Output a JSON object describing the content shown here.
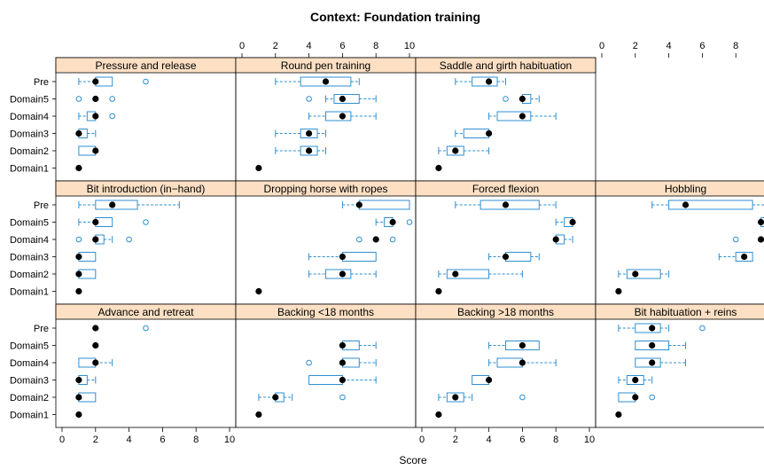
{
  "chart_data": {
    "type": "boxplot",
    "title": "Context: Foundation training",
    "xlabel": "Score",
    "xlim": [
      0,
      10
    ],
    "x_ticks": [
      0,
      2,
      4,
      6,
      8,
      10
    ],
    "y_categories": [
      "Pre",
      "Domain5",
      "Domain4",
      "Domain3",
      "Domain2",
      "Domain1"
    ],
    "colors": {
      "box": "#2f8fd0",
      "median": "#000000",
      "strip": "#fde0c4"
    },
    "panels": [
      {
        "name": "Pressure and release",
        "groups": [
          {
            "cat": "Pre",
            "whislo": 1,
            "q1": 2,
            "med": 2,
            "q3": 3,
            "whishi": 3,
            "outliers": [
              5
            ]
          },
          {
            "cat": "Domain5",
            "whislo": 2,
            "q1": 2,
            "med": 2,
            "q3": 2,
            "whishi": 2,
            "outliers": [
              1,
              3
            ]
          },
          {
            "cat": "Domain4",
            "whislo": 1,
            "q1": 1.5,
            "med": 2,
            "q3": 2,
            "whishi": 2,
            "outliers": [
              3
            ]
          },
          {
            "cat": "Domain3",
            "whislo": 1,
            "q1": 1,
            "med": 1,
            "q3": 1.5,
            "whishi": 2,
            "outliers": []
          },
          {
            "cat": "Domain2",
            "whislo": 1,
            "q1": 1,
            "med": 2,
            "q3": 2,
            "whishi": 2,
            "outliers": []
          },
          {
            "cat": "Domain1",
            "whislo": 1,
            "q1": 1,
            "med": 1,
            "q3": 1,
            "whishi": 1,
            "outliers": []
          }
        ]
      },
      {
        "name": "Round pen training",
        "groups": [
          {
            "cat": "Pre",
            "whislo": 2,
            "q1": 3.5,
            "med": 5,
            "q3": 6.5,
            "whishi": 7,
            "outliers": []
          },
          {
            "cat": "Domain5",
            "whislo": 5,
            "q1": 5.5,
            "med": 6,
            "q3": 7,
            "whishi": 8,
            "outliers": [
              4
            ]
          },
          {
            "cat": "Domain4",
            "whislo": 4,
            "q1": 5,
            "med": 6,
            "q3": 6.5,
            "whishi": 8,
            "outliers": []
          },
          {
            "cat": "Domain3",
            "whislo": 2,
            "q1": 3.5,
            "med": 4,
            "q3": 4.5,
            "whishi": 5,
            "outliers": []
          },
          {
            "cat": "Domain2",
            "whislo": 2,
            "q1": 3.5,
            "med": 4,
            "q3": 4.5,
            "whishi": 5,
            "outliers": []
          },
          {
            "cat": "Domain1",
            "whislo": 1,
            "q1": 1,
            "med": 1,
            "q3": 1,
            "whishi": 1,
            "outliers": []
          }
        ]
      },
      {
        "name": "Saddle and girth habituation",
        "groups": [
          {
            "cat": "Pre",
            "whislo": 2,
            "q1": 3,
            "med": 4,
            "q3": 4.5,
            "whishi": 5,
            "outliers": []
          },
          {
            "cat": "Domain5",
            "whislo": 6,
            "q1": 6,
            "med": 6,
            "q3": 6.5,
            "whishi": 7,
            "outliers": [
              5
            ]
          },
          {
            "cat": "Domain4",
            "whislo": 4,
            "q1": 4.5,
            "med": 6,
            "q3": 6.5,
            "whishi": 8,
            "outliers": []
          },
          {
            "cat": "Domain3",
            "whislo": 2,
            "q1": 2.5,
            "med": 4,
            "q3": 4,
            "whishi": 4,
            "outliers": []
          },
          {
            "cat": "Domain2",
            "whislo": 1,
            "q1": 1.5,
            "med": 2,
            "q3": 2.5,
            "whishi": 4,
            "outliers": []
          },
          {
            "cat": "Domain1",
            "whislo": 1,
            "q1": 1,
            "med": 1,
            "q3": 1,
            "whishi": 1,
            "outliers": []
          }
        ]
      },
      {
        "name": "",
        "groups": []
      },
      {
        "name": "Bit introduction (in−hand)",
        "groups": [
          {
            "cat": "Pre",
            "whislo": 1,
            "q1": 2,
            "med": 3,
            "q3": 4.5,
            "whishi": 7,
            "outliers": []
          },
          {
            "cat": "Domain5",
            "whislo": 1,
            "q1": 2,
            "med": 2,
            "q3": 3,
            "whishi": 3,
            "outliers": [
              5
            ]
          },
          {
            "cat": "Domain4",
            "whislo": 2,
            "q1": 2,
            "med": 2,
            "q3": 2.5,
            "whishi": 3,
            "outliers": [
              1,
              4
            ]
          },
          {
            "cat": "Domain3",
            "whislo": 1,
            "q1": 1,
            "med": 1,
            "q3": 2,
            "whishi": 2,
            "outliers": []
          },
          {
            "cat": "Domain2",
            "whislo": 1,
            "q1": 1,
            "med": 1,
            "q3": 2,
            "whishi": 2,
            "outliers": []
          },
          {
            "cat": "Domain1",
            "whislo": 1,
            "q1": 1,
            "med": 1,
            "q3": 1,
            "whishi": 1,
            "outliers": []
          }
        ]
      },
      {
        "name": "Dropping horse with ropes",
        "groups": [
          {
            "cat": "Pre",
            "whislo": 6,
            "q1": 7,
            "med": 7,
            "q3": 10,
            "whishi": 10,
            "outliers": []
          },
          {
            "cat": "Domain5",
            "whislo": 8,
            "q1": 8.5,
            "med": 9,
            "q3": 9,
            "whishi": 9,
            "outliers": [
              10
            ]
          },
          {
            "cat": "Domain4",
            "whislo": 8,
            "q1": 8,
            "med": 8,
            "q3": 8,
            "whishi": 8,
            "outliers": [
              7,
              9
            ]
          },
          {
            "cat": "Domain3",
            "whislo": 4,
            "q1": 6,
            "med": 6,
            "q3": 8,
            "whishi": 8,
            "outliers": []
          },
          {
            "cat": "Domain2",
            "whislo": 4,
            "q1": 5,
            "med": 6,
            "q3": 6.5,
            "whishi": 8,
            "outliers": []
          },
          {
            "cat": "Domain1",
            "whislo": 1,
            "q1": 1,
            "med": 1,
            "q3": 1,
            "whishi": 1,
            "outliers": []
          }
        ]
      },
      {
        "name": "Forced flexion",
        "groups": [
          {
            "cat": "Pre",
            "whislo": 2,
            "q1": 3.5,
            "med": 5,
            "q3": 7,
            "whishi": 8,
            "outliers": []
          },
          {
            "cat": "Domain5",
            "whislo": 8,
            "q1": 8.5,
            "med": 9,
            "q3": 9,
            "whishi": 9,
            "outliers": []
          },
          {
            "cat": "Domain4",
            "whislo": 8,
            "q1": 8,
            "med": 8,
            "q3": 8.5,
            "whishi": 9,
            "outliers": []
          },
          {
            "cat": "Domain3",
            "whislo": 4,
            "q1": 5,
            "med": 5,
            "q3": 6.5,
            "whishi": 7,
            "outliers": []
          },
          {
            "cat": "Domain2",
            "whislo": 1,
            "q1": 1.5,
            "med": 2,
            "q3": 4,
            "whishi": 6,
            "outliers": []
          },
          {
            "cat": "Domain1",
            "whislo": 1,
            "q1": 1,
            "med": 1,
            "q3": 1,
            "whishi": 1,
            "outliers": []
          }
        ]
      },
      {
        "name": "Hobbling",
        "groups": [
          {
            "cat": "Pre",
            "whislo": 3,
            "q1": 4,
            "med": 5,
            "q3": 9,
            "whishi": 10,
            "outliers": []
          },
          {
            "cat": "Domain5",
            "whislo": 9.5,
            "q1": 9.5,
            "med": 9.5,
            "q3": 9.8,
            "whishi": 10,
            "outliers": []
          },
          {
            "cat": "Domain4",
            "whislo": 9.5,
            "q1": 9.5,
            "med": 9.5,
            "q3": 9.5,
            "whishi": 9.5,
            "outliers": [
              8
            ]
          },
          {
            "cat": "Domain3",
            "whislo": 7,
            "q1": 8,
            "med": 8.5,
            "q3": 9,
            "whishi": 9,
            "outliers": []
          },
          {
            "cat": "Domain2",
            "whislo": 1,
            "q1": 1.5,
            "med": 2,
            "q3": 3.5,
            "whishi": 4,
            "outliers": []
          },
          {
            "cat": "Domain1",
            "whislo": 1,
            "q1": 1,
            "med": 1,
            "q3": 1,
            "whishi": 1,
            "outliers": []
          }
        ]
      },
      {
        "name": "Advance and retreat",
        "groups": [
          {
            "cat": "Pre",
            "whislo": 2,
            "q1": 2,
            "med": 2,
            "q3": 2,
            "whishi": 2,
            "outliers": [
              5
            ]
          },
          {
            "cat": "Domain5",
            "whislo": 2,
            "q1": 2,
            "med": 2,
            "q3": 2,
            "whishi": 2,
            "outliers": []
          },
          {
            "cat": "Domain4",
            "whislo": 1,
            "q1": 1,
            "med": 2,
            "q3": 2,
            "whishi": 3,
            "outliers": []
          },
          {
            "cat": "Domain3",
            "whislo": 1,
            "q1": 1,
            "med": 1,
            "q3": 1.5,
            "whishi": 2,
            "outliers": []
          },
          {
            "cat": "Domain2",
            "whislo": 1,
            "q1": 1,
            "med": 1,
            "q3": 2,
            "whishi": 2,
            "outliers": []
          },
          {
            "cat": "Domain1",
            "whislo": 1,
            "q1": 1,
            "med": 1,
            "q3": 1,
            "whishi": 1,
            "outliers": []
          }
        ]
      },
      {
        "name": "Backing <18 months",
        "groups": [
          {
            "cat": "Pre",
            "whislo": null,
            "q1": null,
            "med": null,
            "q3": null,
            "whishi": null,
            "outliers": []
          },
          {
            "cat": "Domain5",
            "whislo": 6,
            "q1": 6,
            "med": 6,
            "q3": 7,
            "whishi": 8,
            "outliers": []
          },
          {
            "cat": "Domain4",
            "whislo": 6,
            "q1": 6,
            "med": 6,
            "q3": 7,
            "whishi": 8,
            "outliers": [
              4
            ]
          },
          {
            "cat": "Domain3",
            "whislo": 4,
            "q1": 4,
            "med": 6,
            "q3": 6,
            "whishi": 8,
            "outliers": []
          },
          {
            "cat": "Domain2",
            "whislo": 1,
            "q1": 2,
            "med": 2,
            "q3": 2.5,
            "whishi": 3,
            "outliers": [
              6
            ]
          },
          {
            "cat": "Domain1",
            "whislo": 1,
            "q1": 1,
            "med": 1,
            "q3": 1,
            "whishi": 1,
            "outliers": []
          }
        ]
      },
      {
        "name": "Backing >18 months",
        "groups": [
          {
            "cat": "Pre",
            "whislo": null,
            "q1": null,
            "med": null,
            "q3": null,
            "whishi": null,
            "outliers": []
          },
          {
            "cat": "Domain5",
            "whislo": 4,
            "q1": 5,
            "med": 6,
            "q3": 7,
            "whishi": 7,
            "outliers": []
          },
          {
            "cat": "Domain4",
            "whislo": 4,
            "q1": 4.5,
            "med": 6,
            "q3": 6,
            "whishi": 8,
            "outliers": []
          },
          {
            "cat": "Domain3",
            "whislo": 3,
            "q1": 3,
            "med": 4,
            "q3": 4,
            "whishi": 4,
            "outliers": []
          },
          {
            "cat": "Domain2",
            "whislo": 1,
            "q1": 1.5,
            "med": 2,
            "q3": 2.5,
            "whishi": 3,
            "outliers": [
              6
            ]
          },
          {
            "cat": "Domain1",
            "whislo": 1,
            "q1": 1,
            "med": 1,
            "q3": 1,
            "whishi": 1,
            "outliers": []
          }
        ]
      },
      {
        "name": "Bit habituation + reins",
        "groups": [
          {
            "cat": "Pre",
            "whislo": 1,
            "q1": 2,
            "med": 3,
            "q3": 3.5,
            "whishi": 4,
            "outliers": [
              6
            ]
          },
          {
            "cat": "Domain5",
            "whislo": 2,
            "q1": 2,
            "med": 3,
            "q3": 4,
            "whishi": 5,
            "outliers": []
          },
          {
            "cat": "Domain4",
            "whislo": 2,
            "q1": 2,
            "med": 3,
            "q3": 3.5,
            "whishi": 5,
            "outliers": []
          },
          {
            "cat": "Domain3",
            "whislo": 1,
            "q1": 1.5,
            "med": 2,
            "q3": 2.5,
            "whishi": 3,
            "outliers": []
          },
          {
            "cat": "Domain2",
            "whislo": 1,
            "q1": 1,
            "med": 2,
            "q3": 2,
            "whishi": 2,
            "outliers": [
              3
            ]
          },
          {
            "cat": "Domain1",
            "whislo": 1,
            "q1": 1,
            "med": 1,
            "q3": 1,
            "whishi": 1,
            "outliers": []
          }
        ]
      }
    ]
  }
}
